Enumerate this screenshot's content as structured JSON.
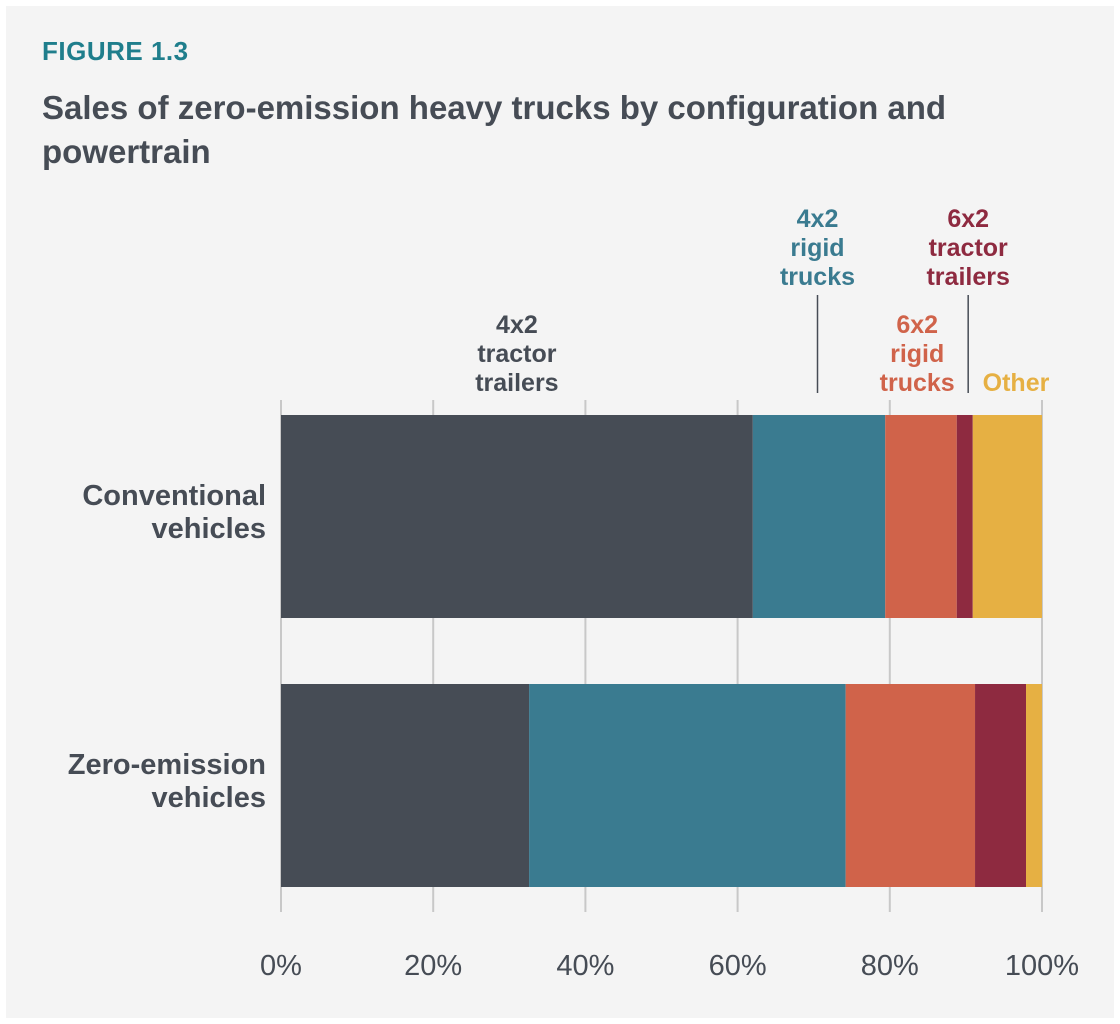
{
  "figure_label": "FIGURE 1.3",
  "title": "Sales of zero-emission heavy trucks by configuration and powertrain",
  "chart_data": {
    "type": "bar",
    "orientation": "horizontal",
    "stacked": true,
    "normalized": true,
    "categories": [
      "Conventional vehicles",
      "Zero-emission vehicles"
    ],
    "category_lines": [
      [
        "Conventional",
        "vehicles"
      ],
      [
        "Zero-emission",
        "vehicles"
      ]
    ],
    "series": [
      {
        "name": "4x2 tractor trailers",
        "label_lines": [
          "4x2",
          "tractor",
          "trailers"
        ],
        "color": "#464c55",
        "values": [
          62,
          32.6
        ]
      },
      {
        "name": "4x2 rigid trucks",
        "label_lines": [
          "4x2",
          "rigid",
          "trucks"
        ],
        "color": "#3a7b90",
        "values": [
          17.4,
          41.6
        ]
      },
      {
        "name": "6x2 rigid trucks",
        "label_lines": [
          "6x2",
          "rigid",
          "trucks"
        ],
        "color": "#d0634a",
        "values": [
          9.4,
          17
        ]
      },
      {
        "name": "6x2 tractor trailers",
        "label_lines": [
          "6x2",
          "tractor",
          "trailers"
        ],
        "color": "#8e2a40",
        "values": [
          2.1,
          6.7
        ]
      },
      {
        "name": "Other",
        "label_lines": [
          "Other"
        ],
        "color": "#e6b043",
        "values": [
          9.1,
          2.1
        ]
      }
    ],
    "xlim": [
      0,
      100
    ],
    "xticks": [
      0,
      20,
      40,
      60,
      80,
      100
    ],
    "xtick_labels": [
      "0%",
      "20%",
      "40%",
      "60%",
      "80%",
      "100%"
    ],
    "grid": true
  }
}
